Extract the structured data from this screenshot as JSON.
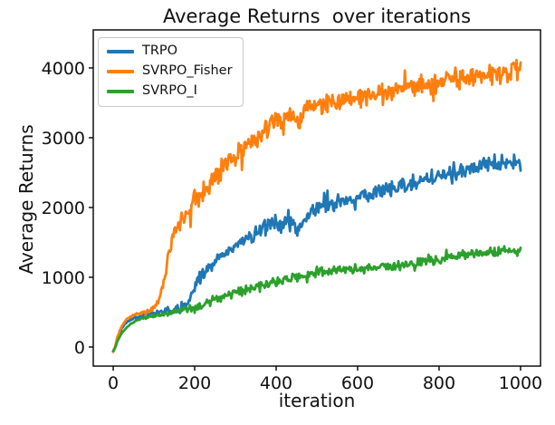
{
  "chart_data": {
    "type": "line",
    "title": "Average Returns  over iterations",
    "xlabel": "iteration",
    "ylabel": "Average Returns",
    "xlim": [
      -49,
      1049
    ],
    "ylim": [
      -273,
      4545
    ],
    "x_ticks": [
      0,
      200,
      400,
      600,
      800,
      1000
    ],
    "y_ticks": [
      0,
      1000,
      2000,
      3000,
      4000
    ],
    "grid": false,
    "legend_position": "upper-left",
    "series": [
      {
        "name": "TRPO",
        "color": "#1f77b4",
        "noise_amplitude": 105,
        "trend": [
          [
            0,
            -60
          ],
          [
            5,
            0
          ],
          [
            10,
            110
          ],
          [
            20,
            260
          ],
          [
            30,
            340
          ],
          [
            40,
            385
          ],
          [
            60,
            430
          ],
          [
            80,
            460
          ],
          [
            100,
            490
          ],
          [
            120,
            510
          ],
          [
            140,
            525
          ],
          [
            160,
            545
          ],
          [
            175,
            580
          ],
          [
            190,
            720
          ],
          [
            200,
            850
          ],
          [
            210,
            950
          ],
          [
            220,
            1030
          ],
          [
            240,
            1180
          ],
          [
            260,
            1300
          ],
          [
            280,
            1390
          ],
          [
            300,
            1460
          ],
          [
            320,
            1530
          ],
          [
            340,
            1600
          ],
          [
            360,
            1680
          ],
          [
            380,
            1750
          ],
          [
            400,
            1790
          ],
          [
            410,
            1700
          ],
          [
            420,
            1820
          ],
          [
            440,
            1780
          ],
          [
            455,
            1650
          ],
          [
            470,
            1850
          ],
          [
            490,
            1950
          ],
          [
            510,
            2000
          ],
          [
            530,
            2030
          ],
          [
            550,
            2060
          ],
          [
            570,
            2100
          ],
          [
            600,
            2150
          ],
          [
            630,
            2200
          ],
          [
            660,
            2250
          ],
          [
            690,
            2280
          ],
          [
            720,
            2330
          ],
          [
            750,
            2380
          ],
          [
            780,
            2420
          ],
          [
            810,
            2460
          ],
          [
            840,
            2500
          ],
          [
            870,
            2550
          ],
          [
            900,
            2590
          ],
          [
            930,
            2620
          ],
          [
            960,
            2650
          ],
          [
            980,
            2660
          ],
          [
            1000,
            2640
          ]
        ]
      },
      {
        "name": "SVRPO_Fisher",
        "color": "#ff7f0e",
        "noise_amplitude": 155,
        "trend": [
          [
            0,
            -60
          ],
          [
            5,
            10
          ],
          [
            10,
            130
          ],
          [
            20,
            290
          ],
          [
            30,
            380
          ],
          [
            40,
            430
          ],
          [
            50,
            460
          ],
          [
            60,
            480
          ],
          [
            70,
            490
          ],
          [
            80,
            500
          ],
          [
            90,
            520
          ],
          [
            100,
            560
          ],
          [
            110,
            650
          ],
          [
            118,
            780
          ],
          [
            125,
            950
          ],
          [
            132,
            1150
          ],
          [
            140,
            1400
          ],
          [
            148,
            1600
          ],
          [
            155,
            1700
          ],
          [
            165,
            1800
          ],
          [
            175,
            1880
          ],
          [
            190,
            2000
          ],
          [
            210,
            2150
          ],
          [
            230,
            2300
          ],
          [
            250,
            2450
          ],
          [
            270,
            2570
          ],
          [
            290,
            2680
          ],
          [
            310,
            2800
          ],
          [
            330,
            2920
          ],
          [
            350,
            3020
          ],
          [
            370,
            3100
          ],
          [
            390,
            3180
          ],
          [
            410,
            3260
          ],
          [
            430,
            3300
          ],
          [
            445,
            3200
          ],
          [
            460,
            3330
          ],
          [
            480,
            3400
          ],
          [
            500,
            3450
          ],
          [
            530,
            3500
          ],
          [
            560,
            3540
          ],
          [
            590,
            3570
          ],
          [
            620,
            3600
          ],
          [
            650,
            3630
          ],
          [
            680,
            3660
          ],
          [
            710,
            3690
          ],
          [
            740,
            3710
          ],
          [
            770,
            3750
          ],
          [
            800,
            3790
          ],
          [
            830,
            3820
          ],
          [
            860,
            3850
          ],
          [
            890,
            3870
          ],
          [
            920,
            3900
          ],
          [
            950,
            3930
          ],
          [
            975,
            3960
          ],
          [
            1000,
            3940
          ]
        ]
      },
      {
        "name": "SVRPO_I",
        "color": "#2ca02c",
        "noise_amplitude": 62,
        "trend": [
          [
            0,
            -60
          ],
          [
            5,
            -10
          ],
          [
            10,
            80
          ],
          [
            20,
            190
          ],
          [
            30,
            260
          ],
          [
            40,
            320
          ],
          [
            60,
            390
          ],
          [
            80,
            425
          ],
          [
            100,
            445
          ],
          [
            120,
            465
          ],
          [
            140,
            485
          ],
          [
            160,
            505
          ],
          [
            180,
            535
          ],
          [
            200,
            570
          ],
          [
            220,
            610
          ],
          [
            240,
            655
          ],
          [
            260,
            700
          ],
          [
            280,
            740
          ],
          [
            300,
            780
          ],
          [
            320,
            820
          ],
          [
            340,
            855
          ],
          [
            360,
            880
          ],
          [
            380,
            905
          ],
          [
            400,
            935
          ],
          [
            420,
            960
          ],
          [
            440,
            990
          ],
          [
            460,
            1015
          ],
          [
            480,
            1040
          ],
          [
            500,
            1060
          ],
          [
            520,
            1080
          ],
          [
            540,
            1090
          ],
          [
            560,
            1105
          ],
          [
            580,
            1120
          ],
          [
            600,
            1130
          ],
          [
            620,
            1115
          ],
          [
            640,
            1130
          ],
          [
            660,
            1145
          ],
          [
            680,
            1155
          ],
          [
            700,
            1165
          ],
          [
            720,
            1185
          ],
          [
            740,
            1205
          ],
          [
            760,
            1225
          ],
          [
            780,
            1240
          ],
          [
            800,
            1255
          ],
          [
            820,
            1280
          ],
          [
            840,
            1305
          ],
          [
            860,
            1325
          ],
          [
            880,
            1335
          ],
          [
            900,
            1345
          ],
          [
            920,
            1355
          ],
          [
            940,
            1355
          ],
          [
            960,
            1365
          ],
          [
            980,
            1375
          ],
          [
            1000,
            1380
          ]
        ]
      }
    ]
  }
}
